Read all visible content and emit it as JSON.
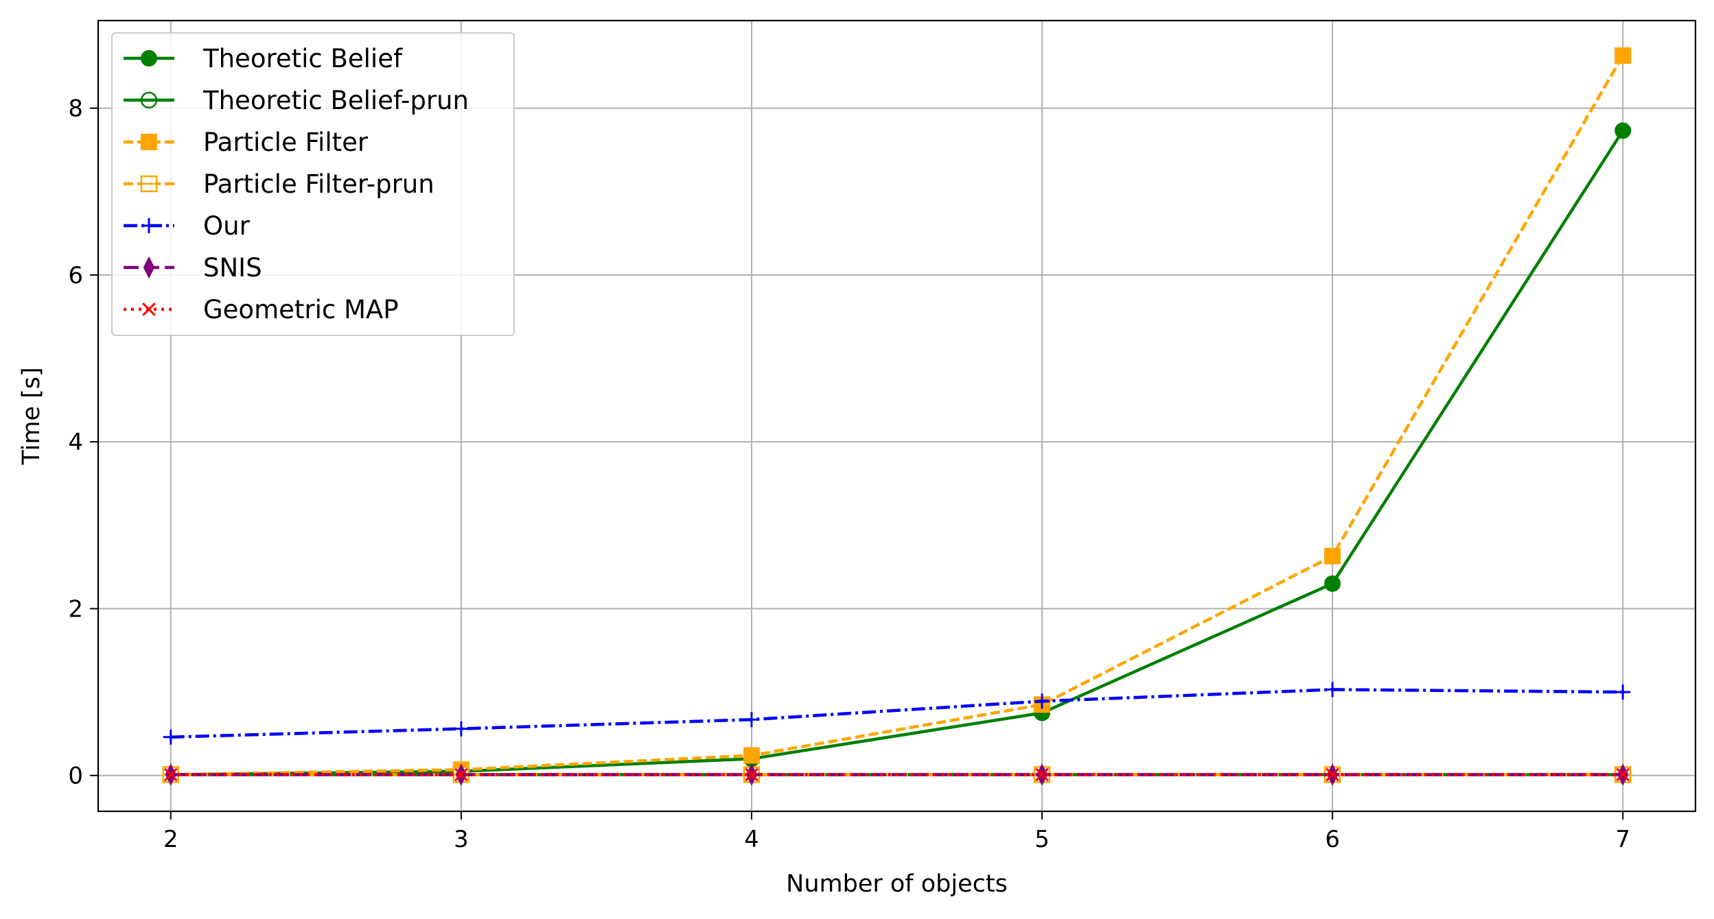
{
  "chart_data": {
    "type": "line",
    "title": "",
    "xlabel": "Number of objects",
    "ylabel": "Time [s]",
    "x": [
      2,
      3,
      4,
      5,
      6,
      7
    ],
    "xlim": [
      1.75,
      7.25
    ],
    "ylim": [
      -0.43,
      9.05
    ],
    "xticks": [
      2,
      3,
      4,
      5,
      6,
      7
    ],
    "yticks": [
      0,
      2,
      4,
      6,
      8
    ],
    "grid": true,
    "legend_position": "top-left",
    "series": [
      {
        "name": "Theoretic Belief",
        "values": [
          0.01,
          0.05,
          0.2,
          0.75,
          2.3,
          7.73
        ],
        "color": "#008000",
        "dash": "solid",
        "marker": "circle-filled"
      },
      {
        "name": "Theoretic Belief-prun",
        "values": [
          0.01,
          0.01,
          0.01,
          0.01,
          0.01,
          0.01
        ],
        "color": "#008000",
        "dash": "solid",
        "marker": "circle-open"
      },
      {
        "name": "Particle Filter",
        "values": [
          0.01,
          0.07,
          0.24,
          0.85,
          2.63,
          8.63
        ],
        "color": "#ffa500",
        "dash": "dashed",
        "marker": "square-filled"
      },
      {
        "name": "Particle Filter-prun",
        "values": [
          0.01,
          0.01,
          0.01,
          0.01,
          0.01,
          0.01
        ],
        "color": "#ffa500",
        "dash": "dashed",
        "marker": "square-half"
      },
      {
        "name": "Our",
        "values": [
          0.46,
          0.56,
          0.67,
          0.89,
          1.03,
          1.0
        ],
        "color": "#0000ff",
        "dash": "dashdot",
        "marker": "plus"
      },
      {
        "name": "SNIS",
        "values": [
          0.01,
          0.01,
          0.01,
          0.01,
          0.01,
          0.01
        ],
        "color": "#800080",
        "dash": "dashed-long",
        "marker": "thin-diamond"
      },
      {
        "name": "Geometric MAP",
        "values": [
          0.01,
          0.01,
          0.01,
          0.01,
          0.01,
          0.01
        ],
        "color": "#ff0000",
        "dash": "dotted",
        "marker": "x"
      }
    ]
  }
}
